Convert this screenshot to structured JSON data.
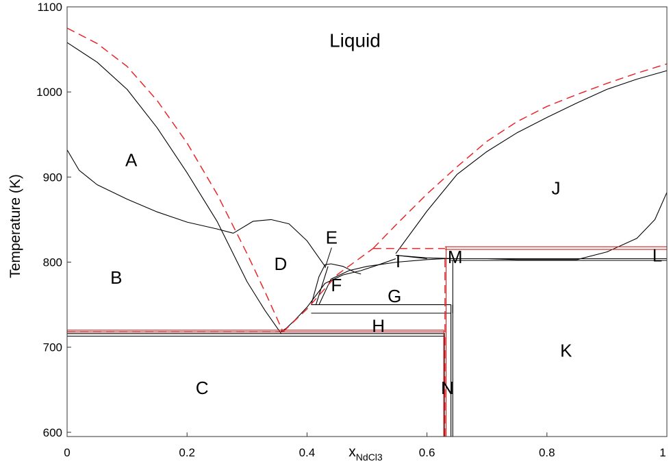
{
  "chart_data": {
    "type": "line",
    "title": "",
    "xlabel_main": "x",
    "xlabel_sub": "NdCl3",
    "ylabel": "Temperature (K)",
    "xlim": [
      0,
      1
    ],
    "ylim": [
      595,
      1100
    ],
    "xticks": [
      0,
      0.2,
      0.4,
      0.6,
      0.8,
      1
    ],
    "xtick_labels": [
      "0",
      "0.2",
      "0.4",
      "0.6",
      "0.8",
      "1"
    ],
    "yticks": [
      600,
      700,
      800,
      900,
      1000,
      1100
    ],
    "ytick_labels": [
      "600",
      "700",
      "800",
      "900",
      "1000",
      "1100"
    ],
    "grid": false,
    "colors": {
      "computed": "#000000",
      "experimental": "#e8262a",
      "experimental_hlines": "#cc1f1f"
    },
    "series": [
      {
        "style": "black-solid",
        "points": [
          [
            0.0,
            1058
          ],
          [
            0.05,
            1035
          ],
          [
            0.1,
            1003
          ],
          [
            0.15,
            958
          ],
          [
            0.2,
            905
          ],
          [
            0.25,
            848
          ],
          [
            0.3,
            777
          ],
          [
            0.33,
            743
          ],
          [
            0.357,
            716
          ]
        ]
      },
      {
        "style": "black-solid",
        "points": [
          [
            0.0,
            932
          ],
          [
            0.02,
            908
          ],
          [
            0.05,
            891
          ],
          [
            0.1,
            874
          ],
          [
            0.15,
            859
          ],
          [
            0.2,
            847
          ],
          [
            0.25,
            839
          ],
          [
            0.277,
            834
          ]
        ]
      },
      {
        "style": "black-solid",
        "points": [
          [
            0.277,
            834
          ],
          [
            0.31,
            848
          ],
          [
            0.34,
            850
          ],
          [
            0.37,
            845
          ],
          [
            0.4,
            825
          ],
          [
            0.43,
            795
          ]
        ]
      },
      {
        "style": "black-solid",
        "points": [
          [
            0.355,
            718
          ],
          [
            0.365,
            722
          ],
          [
            0.38,
            732
          ],
          [
            0.4,
            747
          ],
          [
            0.43,
            775
          ],
          [
            0.46,
            785
          ],
          [
            0.49,
            790
          ],
          [
            0.52,
            797
          ],
          [
            0.548,
            804
          ]
        ]
      },
      {
        "style": "black-solid",
        "points": [
          [
            0.548,
            810
          ],
          [
            0.6,
            860
          ],
          [
            0.65,
            903
          ],
          [
            0.7,
            930
          ],
          [
            0.75,
            952
          ],
          [
            0.8,
            970
          ],
          [
            0.85,
            987
          ],
          [
            0.9,
            1003
          ],
          [
            0.95,
            1015
          ],
          [
            1.0,
            1025
          ]
        ]
      },
      {
        "style": "black-solid",
        "points": [
          [
            0.42,
            750
          ],
          [
            0.44,
            780
          ],
          [
            0.47,
            790
          ],
          [
            0.5,
            795
          ],
          [
            0.55,
            800
          ],
          [
            0.6,
            803
          ],
          [
            0.63,
            804
          ]
        ]
      },
      {
        "style": "black-solid",
        "points": [
          [
            0.407,
            750
          ],
          [
            0.42,
            783
          ],
          [
            0.43,
            797
          ],
          [
            0.44,
            798
          ],
          [
            0.46,
            795
          ],
          [
            0.48,
            788
          ],
          [
            0.49,
            786
          ]
        ]
      },
      {
        "style": "black-solid",
        "points": [
          [
            0.415,
            750
          ],
          [
            0.435,
            795
          ]
        ]
      },
      {
        "style": "black-solid",
        "points": [
          [
            0.548,
            808
          ],
          [
            0.6,
            805
          ],
          [
            0.65,
            804
          ],
          [
            0.7,
            804
          ],
          [
            0.75,
            803
          ],
          [
            0.8,
            803
          ],
          [
            0.85,
            803
          ]
        ]
      },
      {
        "style": "black-solid",
        "points": [
          [
            0.548,
            808
          ],
          [
            0.6,
            804
          ]
        ]
      },
      {
        "style": "black-solid",
        "points": [
          [
            0.85,
            803
          ],
          [
            0.9,
            812
          ],
          [
            0.95,
            828
          ],
          [
            0.98,
            850
          ],
          [
            1.0,
            882
          ]
        ]
      },
      {
        "style": "black-solid",
        "points": [
          [
            0.0,
            716
          ],
          [
            0.63,
            716
          ]
        ]
      },
      {
        "style": "black-solid",
        "points": [
          [
            0.0,
            713
          ],
          [
            0.63,
            713
          ]
        ]
      },
      {
        "style": "black-solid",
        "points": [
          [
            0.407,
            750
          ],
          [
            0.64,
            750
          ]
        ]
      },
      {
        "style": "black-solid",
        "points": [
          [
            0.407,
            740
          ],
          [
            0.64,
            740
          ]
        ]
      },
      {
        "style": "black-solid",
        "points": [
          [
            0.63,
            804
          ],
          [
            1.0,
            804
          ]
        ]
      },
      {
        "style": "black-solid",
        "points": [
          [
            0.64,
            802
          ],
          [
            1.0,
            802
          ]
        ]
      },
      {
        "style": "black-solid",
        "points": [
          [
            0.629,
            595
          ],
          [
            0.629,
            716
          ]
        ]
      },
      {
        "style": "black-solid",
        "points": [
          [
            0.64,
            595
          ],
          [
            0.64,
            750
          ]
        ]
      },
      {
        "style": "black-solid",
        "points": [
          [
            0.643,
            595
          ],
          [
            0.643,
            750
          ]
        ]
      },
      {
        "style": "black-solid",
        "points": [
          [
            0.643,
            740
          ],
          [
            0.643,
            802
          ]
        ]
      },
      {
        "style": "red-dashed",
        "points": [
          [
            0.0,
            1075
          ],
          [
            0.05,
            1057
          ],
          [
            0.1,
            1030
          ],
          [
            0.15,
            990
          ],
          [
            0.2,
            940
          ],
          [
            0.25,
            880
          ],
          [
            0.3,
            810
          ],
          [
            0.33,
            765
          ],
          [
            0.36,
            718
          ]
        ]
      },
      {
        "style": "red-dashed",
        "points": [
          [
            0.36,
            718
          ],
          [
            0.4,
            745
          ],
          [
            0.45,
            785
          ],
          [
            0.51,
            816
          ]
        ]
      },
      {
        "style": "red-dashed",
        "points": [
          [
            0.51,
            816
          ],
          [
            0.55,
            845
          ],
          [
            0.6,
            880
          ],
          [
            0.65,
            912
          ],
          [
            0.7,
            942
          ],
          [
            0.75,
            965
          ],
          [
            0.8,
            983
          ],
          [
            0.85,
            997
          ],
          [
            0.9,
            1010
          ],
          [
            0.95,
            1022
          ],
          [
            1.0,
            1033
          ]
        ]
      },
      {
        "style": "red-dashed",
        "points": [
          [
            0.0,
            718
          ],
          [
            0.36,
            718
          ]
        ]
      },
      {
        "style": "red-dashed",
        "points": [
          [
            0.51,
            816
          ],
          [
            0.63,
            816
          ]
        ]
      },
      {
        "style": "red-dashed",
        "points": [
          [
            0.63,
            595
          ],
          [
            0.63,
            808
          ]
        ]
      },
      {
        "style": "red-solid",
        "points": [
          [
            0.0,
            720
          ],
          [
            0.628,
            720
          ]
        ]
      },
      {
        "style": "red-solid",
        "points": [
          [
            0.0,
            718
          ],
          [
            0.628,
            718
          ]
        ]
      },
      {
        "style": "red-solid",
        "points": [
          [
            0.628,
            595
          ],
          [
            0.628,
            720
          ]
        ]
      },
      {
        "style": "red-solid",
        "points": [
          [
            0.63,
            818
          ],
          [
            1.0,
            818
          ]
        ]
      },
      {
        "style": "red-solid",
        "points": [
          [
            0.63,
            815
          ],
          [
            1.0,
            815
          ]
        ]
      },
      {
        "style": "red-solid",
        "points": [
          [
            0.632,
            595
          ],
          [
            0.632,
            818
          ]
        ]
      }
    ],
    "annotations": [
      {
        "text": "Liquid",
        "x": 0.48,
        "y": 1061,
        "kind": "liquid"
      },
      {
        "text": "A",
        "x": 0.107,
        "y": 920,
        "kind": "region"
      },
      {
        "text": "B",
        "x": 0.082,
        "y": 782,
        "kind": "region"
      },
      {
        "text": "C",
        "x": 0.225,
        "y": 652,
        "kind": "region"
      },
      {
        "text": "D",
        "x": 0.356,
        "y": 798,
        "kind": "region"
      },
      {
        "text": "E",
        "x": 0.441,
        "y": 829,
        "kind": "region"
      },
      {
        "text": "F",
        "x": 0.449,
        "y": 773,
        "kind": "region"
      },
      {
        "text": "G",
        "x": 0.546,
        "y": 760,
        "kind": "region"
      },
      {
        "text": "H",
        "x": 0.519,
        "y": 725,
        "kind": "region"
      },
      {
        "text": "I",
        "x": 0.552,
        "y": 801,
        "kind": "region"
      },
      {
        "text": "J",
        "x": 0.815,
        "y": 887,
        "kind": "region"
      },
      {
        "text": "K",
        "x": 0.832,
        "y": 696,
        "kind": "region"
      },
      {
        "text": "L",
        "x": 0.984,
        "y": 808,
        "kind": "region"
      },
      {
        "text": "M",
        "x": 0.647,
        "y": 806,
        "kind": "region"
      },
      {
        "text": "N",
        "x": 0.634,
        "y": 652,
        "kind": "region"
      }
    ],
    "leaders": [
      {
        "from": [
          0.441,
          817
        ],
        "to": [
          0.43,
          793
        ]
      }
    ]
  }
}
